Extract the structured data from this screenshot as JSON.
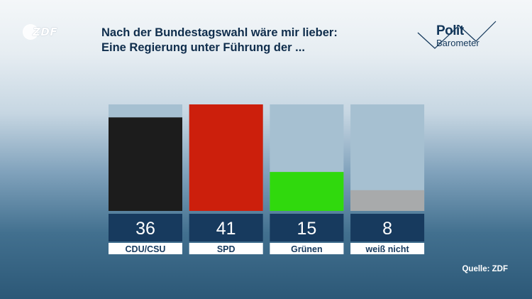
{
  "logo": {
    "text": "ZDF"
  },
  "title": {
    "line1": "Nach der Bundestagswahl wäre mir lieber:",
    "line2": "Eine Regierung unter Führung der ..."
  },
  "brand": {
    "line1": "Polit",
    "line2": "Barometer"
  },
  "source": "Quelle: ZDF",
  "colors": {
    "CDU/CSU": "#1c1c1c",
    "SPD": "#cc1f0c",
    "Grünen": "#30d90d",
    "weiß nicht": "#a8aaab",
    "bar_track": "#a6c0d1",
    "value_box": "#173a5e",
    "label_box": "#ffffff",
    "label_text": "#173a5e"
  },
  "chart_data": {
    "type": "bar",
    "categories": [
      "CDU/CSU",
      "SPD",
      "Grünen",
      "weiß nicht"
    ],
    "values": [
      36,
      41,
      15,
      8
    ],
    "unit": "percent",
    "ylim": [
      0,
      41
    ],
    "grid": false,
    "legend": "none"
  }
}
